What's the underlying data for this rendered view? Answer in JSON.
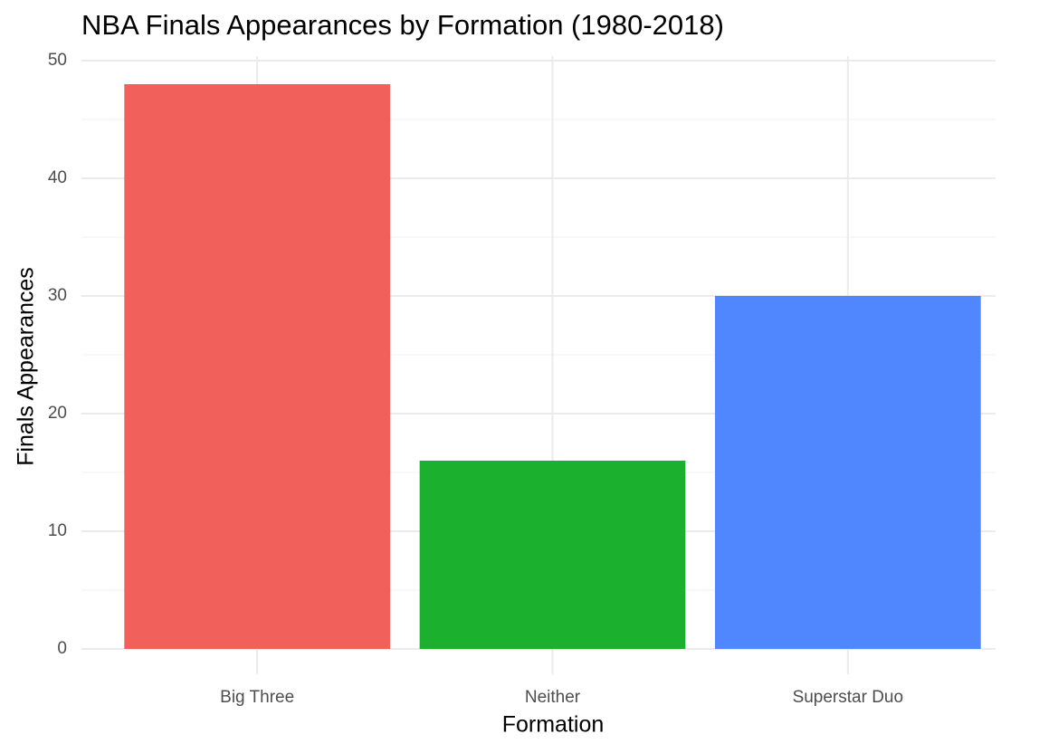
{
  "chart_data": {
    "type": "bar",
    "title": "NBA Finals Appearances by Formation (1980-2018)",
    "x_label": "Formation",
    "y_label": "Finals Appearances",
    "categories": [
      "Big Three",
      "Neither",
      "Superstar Duo"
    ],
    "values": [
      48,
      16,
      30
    ],
    "colors": [
      "#f2605b",
      "#1bb12f",
      "#5086fe"
    ],
    "ylim": [
      0,
      50
    ],
    "yticks": [
      0,
      10,
      20,
      30,
      40,
      50
    ],
    "minor_yticks": [
      5,
      15,
      25,
      35,
      45
    ],
    "grid": true
  }
}
